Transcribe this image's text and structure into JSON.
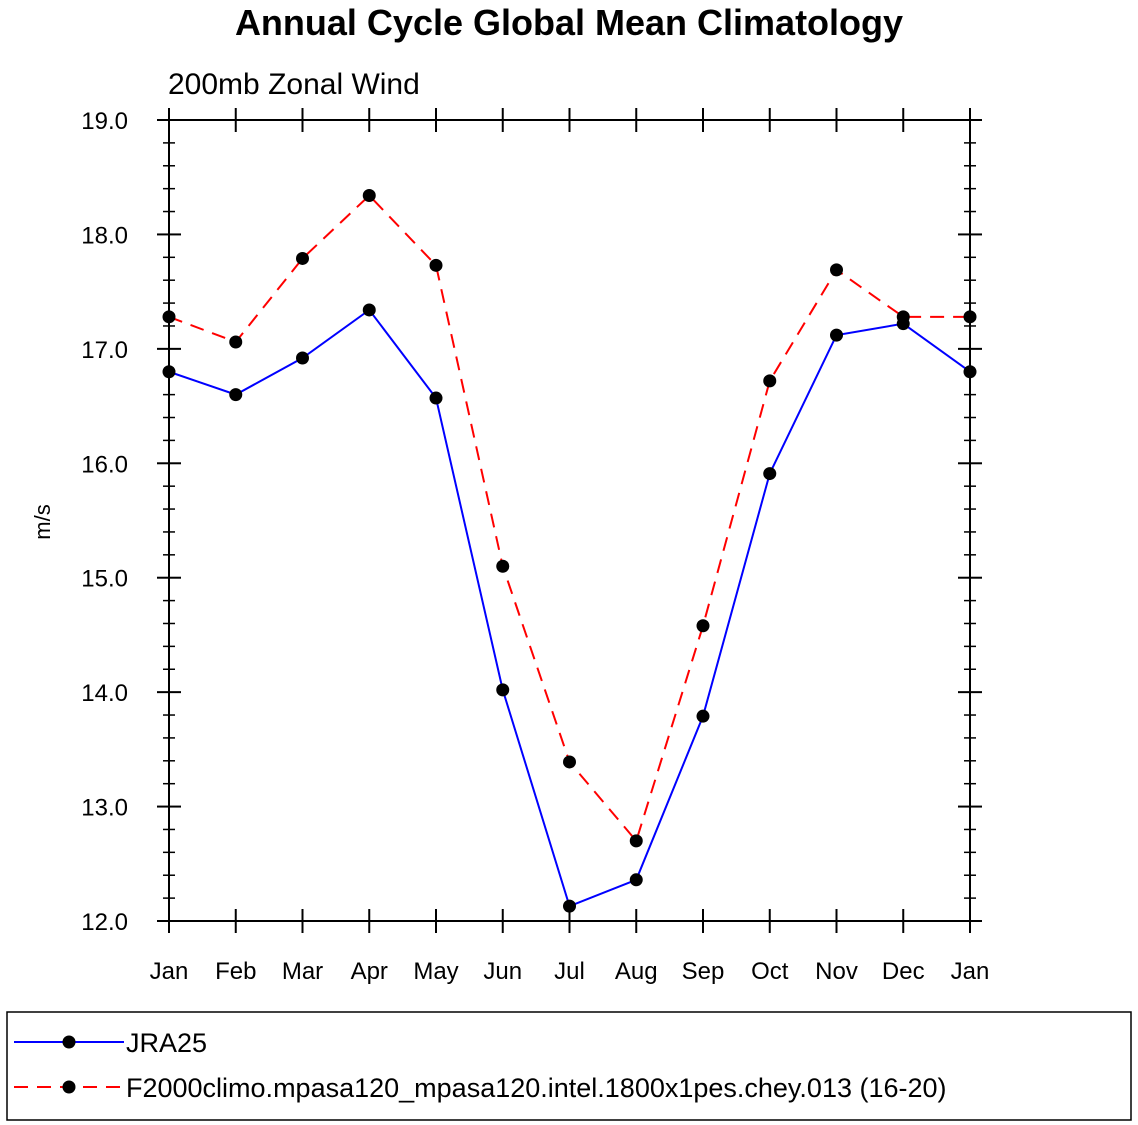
{
  "chart_data": {
    "type": "line",
    "title": "Annual Cycle Global Mean Climatology",
    "subtitle": "200mb Zonal Wind",
    "xlabel": "",
    "ylabel": "m/s",
    "categories": [
      "Jan",
      "Feb",
      "Mar",
      "Apr",
      "May",
      "Jun",
      "Jul",
      "Aug",
      "Sep",
      "Oct",
      "Nov",
      "Dec",
      "Jan"
    ],
    "ylim": [
      12.0,
      19.0
    ],
    "yticks": [
      "12.0",
      "13.0",
      "14.0",
      "15.0",
      "16.0",
      "17.0",
      "18.0",
      "19.0"
    ],
    "grid": false,
    "legend_position": "bottom",
    "series": [
      {
        "name": "JRA25",
        "color": "#0000ff",
        "dash": "solid",
        "marker": "filled-circle",
        "values": [
          16.8,
          16.6,
          16.92,
          17.34,
          16.57,
          14.02,
          12.13,
          12.36,
          13.79,
          15.91,
          17.12,
          17.22,
          16.8
        ]
      },
      {
        "name": "F2000climo.mpasa120_mpasa120.intel.1800x1pes.chey.013 (16-20)",
        "color": "#ff0000",
        "dash": "dashed",
        "marker": "filled-circle",
        "values": [
          17.28,
          17.06,
          17.79,
          18.34,
          17.73,
          15.1,
          13.39,
          12.7,
          14.58,
          16.72,
          17.69,
          17.28,
          17.28
        ]
      }
    ]
  }
}
